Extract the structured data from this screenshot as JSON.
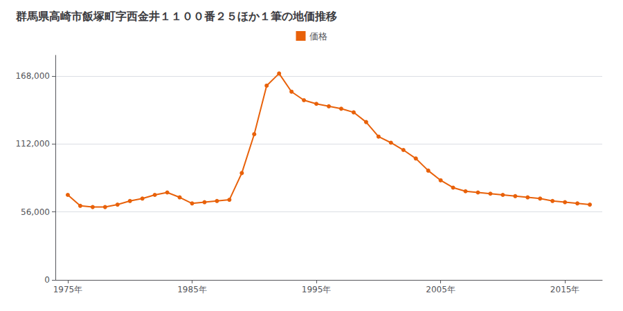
{
  "chart_data": {
    "type": "line",
    "title": "群馬県高崎市飯塚町字西金井１１００番２５ほか１筆の地価推移",
    "x": [
      1975,
      1976,
      1977,
      1978,
      1979,
      1980,
      1981,
      1982,
      1983,
      1984,
      1985,
      1986,
      1987,
      1988,
      1989,
      1990,
      1991,
      1992,
      1993,
      1994,
      1995,
      1996,
      1997,
      1998,
      1999,
      2000,
      2001,
      2002,
      2003,
      2004,
      2005,
      2006,
      2007,
      2008,
      2009,
      2010,
      2011,
      2012,
      2013,
      2014,
      2015,
      2016,
      2017
    ],
    "series": [
      {
        "name": "価格",
        "color": "#e8610a",
        "values": [
          70000,
          61000,
          60000,
          60000,
          62000,
          65000,
          67000,
          70000,
          72000,
          68000,
          63000,
          64000,
          65000,
          66000,
          88000,
          120000,
          160000,
          170000,
          155000,
          148000,
          145000,
          143000,
          141000,
          138000,
          130000,
          118000,
          113000,
          107000,
          100000,
          90000,
          82000,
          76000,
          73000,
          72000,
          71000,
          70000,
          69000,
          68000,
          67000,
          65000,
          64000,
          63000,
          62000
        ]
      }
    ],
    "xlim": [
      1974,
      2018
    ],
    "xticks": [
      {
        "value": 1975,
        "label": "1975年"
      },
      {
        "value": 1985,
        "label": "1985年"
      },
      {
        "value": 1995,
        "label": "1995年"
      },
      {
        "value": 2005,
        "label": "2005年"
      },
      {
        "value": 2015,
        "label": "2015年"
      }
    ],
    "ylim": [
      0,
      185000
    ],
    "yticks": [
      0,
      {
        "value": 56000,
        "label": "56,000"
      },
      {
        "value": 112000,
        "label": "112,000"
      },
      {
        "value": 168000,
        "label": "168,000"
      }
    ],
    "grid": true,
    "legend": "top",
    "marker": "circle"
  }
}
